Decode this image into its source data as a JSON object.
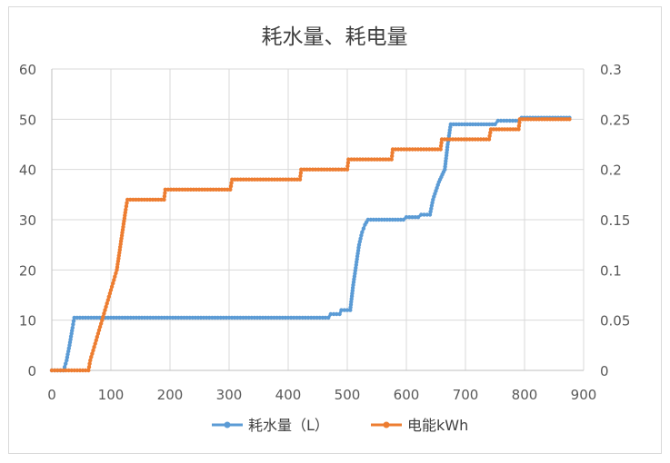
{
  "chart_data": {
    "type": "line",
    "title": "耗水量、耗电量",
    "xlabel": "",
    "ylabel": "",
    "xlim": [
      0,
      900
    ],
    "ylim": [
      0,
      60
    ],
    "y2lim": [
      0,
      0.3
    ],
    "x_ticks": [
      "0",
      "100",
      "200",
      "300",
      "400",
      "500",
      "600",
      "700",
      "800",
      "900"
    ],
    "y_ticks": [
      "0",
      "10",
      "20",
      "30",
      "40",
      "50",
      "60"
    ],
    "y2_ticks": [
      "0",
      "0.05",
      "0.1",
      "0.15",
      "0.2",
      "0.25",
      "0.3"
    ],
    "grid": true,
    "legend_position": "bottom",
    "series": [
      {
        "name": "耗水量（L）",
        "axis": "left",
        "color": "#5b9bd5",
        "points": [
          [
            0,
            0
          ],
          [
            20,
            0
          ],
          [
            25,
            2
          ],
          [
            30,
            5
          ],
          [
            35,
            8.5
          ],
          [
            38,
            10.5
          ],
          [
            100,
            10.5
          ],
          [
            200,
            10.5
          ],
          [
            300,
            10.5
          ],
          [
            400,
            10.5
          ],
          [
            468,
            10.5
          ],
          [
            472,
            11.2
          ],
          [
            487,
            11.2
          ],
          [
            490,
            12
          ],
          [
            505,
            12
          ],
          [
            510,
            17
          ],
          [
            515,
            21
          ],
          [
            520,
            25
          ],
          [
            525,
            27.5
          ],
          [
            530,
            29
          ],
          [
            535,
            30
          ],
          [
            595,
            30
          ],
          [
            600,
            30.5
          ],
          [
            620,
            30.5
          ],
          [
            625,
            31
          ],
          [
            640,
            31
          ],
          [
            645,
            34
          ],
          [
            655,
            37.5
          ],
          [
            665,
            40
          ],
          [
            670,
            45
          ],
          [
            675,
            49
          ],
          [
            750,
            49
          ],
          [
            755,
            49.7
          ],
          [
            790,
            49.7
          ],
          [
            795,
            50.3
          ],
          [
            876,
            50.3
          ]
        ]
      },
      {
        "name": "电能kWh",
        "axis": "right",
        "color": "#ed7d31",
        "points": [
          [
            0,
            0
          ],
          [
            62,
            0
          ],
          [
            65,
            0.01
          ],
          [
            70,
            0.02
          ],
          [
            75,
            0.03
          ],
          [
            80,
            0.04
          ],
          [
            85,
            0.05
          ],
          [
            90,
            0.06
          ],
          [
            95,
            0.07
          ],
          [
            100,
            0.08
          ],
          [
            105,
            0.09
          ],
          [
            110,
            0.1
          ],
          [
            115,
            0.12
          ],
          [
            120,
            0.14
          ],
          [
            125,
            0.16
          ],
          [
            128,
            0.17
          ],
          [
            190,
            0.17
          ],
          [
            192,
            0.18
          ],
          [
            302,
            0.18
          ],
          [
            305,
            0.19
          ],
          [
            420,
            0.19
          ],
          [
            422,
            0.2
          ],
          [
            500,
            0.2
          ],
          [
            502,
            0.21
          ],
          [
            575,
            0.21
          ],
          [
            577,
            0.22
          ],
          [
            658,
            0.22
          ],
          [
            660,
            0.23
          ],
          [
            740,
            0.23
          ],
          [
            743,
            0.24
          ],
          [
            790,
            0.24
          ],
          [
            792,
            0.25
          ],
          [
            876,
            0.25
          ]
        ]
      }
    ]
  }
}
